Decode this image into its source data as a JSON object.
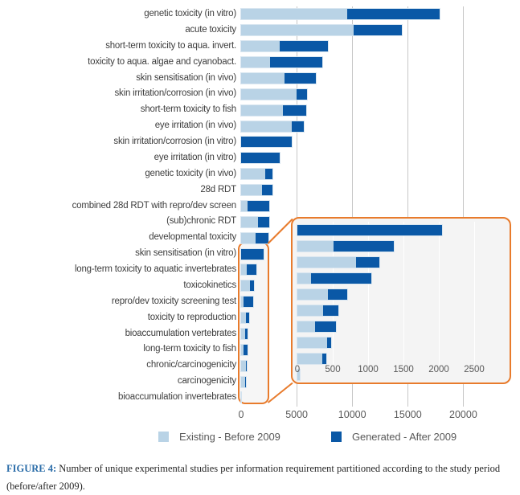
{
  "figure": {
    "caption_prefix": "FIGURE 4:",
    "caption_text": "Number of unique experimental studies per information requirement partitioned according to the study period (before/after 2009)."
  },
  "legend": {
    "items": [
      {
        "label": "Existing - Before 2009",
        "color": "#b9d3e6"
      },
      {
        "label": "Generated - After 2009",
        "color": "#0a58a6"
      }
    ]
  },
  "colors": {
    "existing": "#b9d3e6",
    "generated": "#0a58a6",
    "accent_orange": "#e87b2c",
    "gridline": "#c7c7c7",
    "inset_gridline": "#ffffff"
  },
  "chart_data": {
    "type": "bar",
    "orientation": "horizontal",
    "stacked": true,
    "grid": true,
    "legend_position": "bottom",
    "categories": [
      "genetic toxicity (in vitro)",
      "acute toxicity",
      "short-term toxicity to aqua. invert.",
      "toxicity to aqua. algae and cyanobact.",
      "skin sensitisation (in vivo)",
      "skin irritation/corrosion (in vivo)",
      "short-term toxicity to fish",
      "eye irritation (in vivo)",
      "skin irritation/corrosion (in vitro)",
      "eye irritation (in vitro)",
      "genetic toxicity (in vivo)",
      "28d RDT",
      "combined 28d RDT with repro/dev screen",
      "(sub)chronic RDT",
      "developmental toxicity",
      "skin sensitisation (in vitro)",
      "long-term toxicity to aquatic invertebrates",
      "toxicokinetics",
      "repro/dev toxicity screening test",
      "toxicity to reproduction",
      "bioaccumulation vertebrates",
      "long-term toxicity to fish",
      "chronic/carcinogenicity",
      "carcinogenicity",
      "bioaccumulation invertebrates"
    ],
    "series": [
      {
        "name": "Existing - Before 2009",
        "color": "#b9d3e6",
        "values": [
          9550,
          10150,
          3480,
          2590,
          3910,
          4980,
          3770,
          4570,
          0,
          0,
          2140,
          1880,
          560,
          1550,
          1330,
          0,
          510,
          830,
          190,
          435,
          365,
          250,
          425,
          350,
          35
        ]
      },
      {
        "name": "Generated - After 2009",
        "color": "#0a58a6",
        "values": [
          8300,
          4350,
          4300,
          4750,
          2830,
          920,
          2080,
          1080,
          4590,
          3450,
          690,
          950,
          1950,
          960,
          1130,
          2040,
          850,
          330,
          860,
          270,
          210,
          295,
          50,
          60,
          0
        ]
      }
    ],
    "main_axis": {
      "ticks": [
        0,
        5000,
        10000,
        15000,
        20000
      ],
      "max": 22500,
      "tick_labels": [
        "0",
        "5000",
        "10000",
        "15000",
        "20000"
      ]
    },
    "inset": {
      "description": "magnified view of the 10 smallest categories",
      "categories_range": [
        15,
        24
      ],
      "ticks": [
        0,
        500,
        1000,
        1500,
        2000,
        2500
      ],
      "max": 3000,
      "tick_labels": [
        "0",
        "500",
        "1000",
        "1500",
        "2000",
        "2500"
      ]
    }
  }
}
